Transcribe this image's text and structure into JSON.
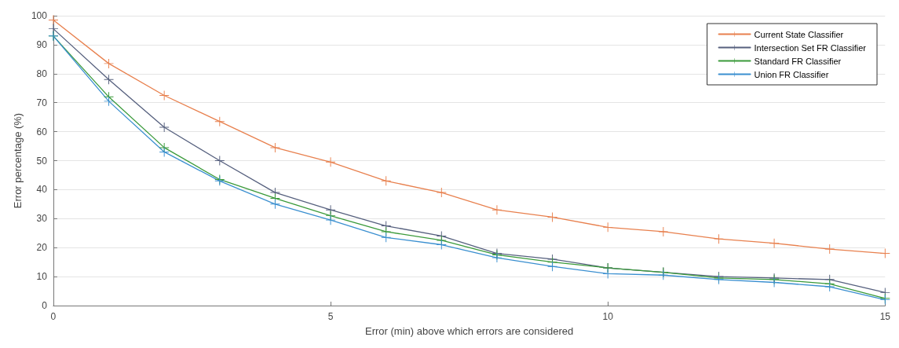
{
  "chart_data": {
    "type": "line",
    "xlabel": "Error (min) above which errors are considered",
    "ylabel": "Error percentage (%)",
    "x": [
      0,
      1,
      2,
      3,
      4,
      5,
      6,
      7,
      8,
      9,
      10,
      11,
      12,
      13,
      14,
      15
    ],
    "series": [
      {
        "name": "Current State Classifier",
        "color": "#e8804e",
        "values": [
          98.5,
          83.5,
          72.5,
          63.5,
          54.5,
          49.5,
          43,
          39,
          33,
          30.5,
          27,
          25.5,
          23,
          21.5,
          19.5,
          18
        ]
      },
      {
        "name": "Intersection Set FR Classifier",
        "color": "#56607e",
        "values": [
          95.5,
          78,
          61.5,
          50,
          39,
          33,
          27.5,
          24,
          18,
          16,
          13,
          11.5,
          10,
          9.5,
          9,
          4.5
        ]
      },
      {
        "name": "Standard FR Classifier",
        "color": "#3a9a3a",
        "values": [
          93,
          72,
          54.5,
          43.5,
          37,
          31,
          25.5,
          22.5,
          17.5,
          15,
          13,
          11.5,
          9.5,
          9,
          7.5,
          2.5
        ]
      },
      {
        "name": "Union FR Classifier",
        "color": "#3a8fd0",
        "values": [
          93,
          70.5,
          53,
          43,
          35,
          29.5,
          23.5,
          21,
          16.5,
          13.5,
          11,
          10.5,
          9,
          8,
          6.5,
          2
        ]
      }
    ],
    "xlim": [
      0,
      15
    ],
    "xticks": [
      0,
      5,
      10,
      15
    ],
    "ylim": [
      0,
      100
    ],
    "yticks": [
      0,
      10,
      20,
      30,
      40,
      50,
      60,
      70,
      80,
      90,
      100
    ],
    "grid": "y",
    "legend": "top right",
    "marker": "cross",
    "line_style": "solid"
  }
}
